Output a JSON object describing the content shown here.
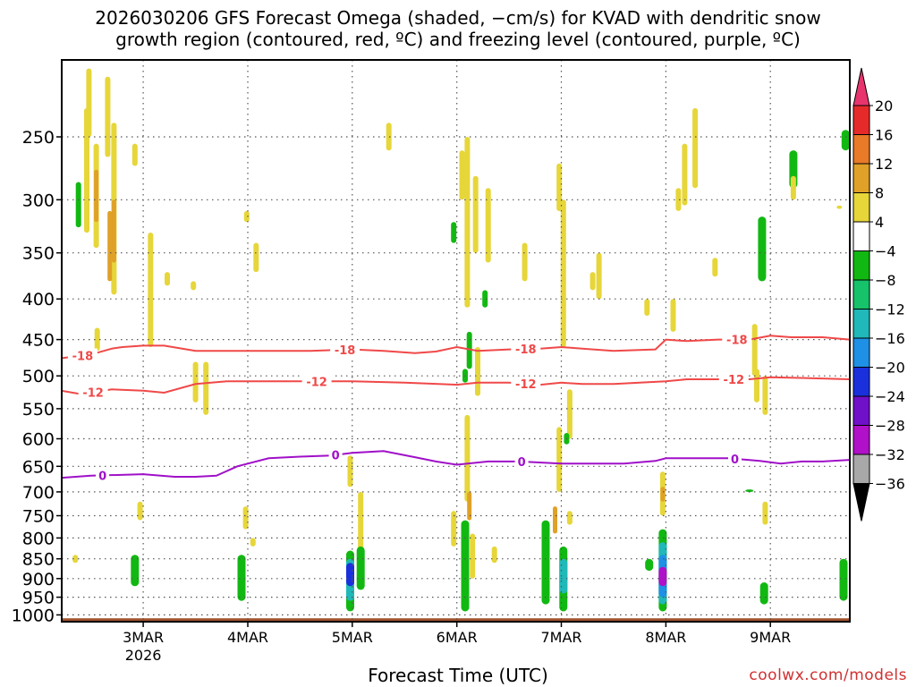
{
  "title_line1": "2026030206 GFS Forecast Omega (shaded, −cm/s) for KVAD with dendritic snow",
  "title_line2": "growth region (contoured, red, ºC) and freezing level (contoured, purple, ºC)",
  "x_axis_label": "Forecast Time (UTC)",
  "credit": "coolwx.com/models",
  "chart_data": {
    "type": "heatmap",
    "title": "2026030206 GFS Forecast Omega (shaded, −cm/s) for KVAD with dendritic snow growth region (contoured, red, ºC) and freezing level (contoured, purple, ºC)",
    "xlabel": "Forecast Time (UTC)",
    "ylabel": "",
    "x_range_days": [
      2.22,
      9.76
    ],
    "y_range_hpa": [
      1020,
      200
    ],
    "y_scale": "log-pressure",
    "grid": true,
    "x_ticks": [
      {
        "value": 3,
        "label": "3MAR",
        "sublabel": "2026"
      },
      {
        "value": 4,
        "label": "4MAR",
        "sublabel": ""
      },
      {
        "value": 5,
        "label": "5MAR",
        "sublabel": ""
      },
      {
        "value": 6,
        "label": "6MAR",
        "sublabel": ""
      },
      {
        "value": 7,
        "label": "7MAR",
        "sublabel": ""
      },
      {
        "value": 8,
        "label": "8MAR",
        "sublabel": ""
      },
      {
        "value": 9,
        "label": "9MAR",
        "sublabel": ""
      }
    ],
    "y_ticks": [
      250,
      300,
      350,
      400,
      450,
      500,
      550,
      600,
      650,
      700,
      750,
      800,
      850,
      900,
      950,
      1000
    ],
    "colorbar": {
      "labels": [
        "20",
        "16",
        "12",
        "8",
        "4",
        "−4",
        "−8",
        "−12",
        "−16",
        "−20",
        "−24",
        "−28",
        "−32",
        "−36"
      ],
      "colors": [
        "#e8356e",
        "#e62a2a",
        "#e87a28",
        "#e0a128",
        "#e6d63a",
        "#ffffff",
        "#12b812",
        "#16c26a",
        "#20b8b8",
        "#1e90e6",
        "#1a30dc",
        "#7010c8",
        "#b010c8",
        "#a8a8a8",
        "#000000"
      ]
    },
    "series": [
      {
        "name": "-18",
        "color": "#f04848",
        "x": [
          2.22,
          2.5,
          2.7,
          2.8,
          3.0,
          3.2,
          3.5,
          3.8,
          4.2,
          4.6,
          5.0,
          5.3,
          5.6,
          5.8,
          6.0,
          6.2,
          6.5,
          6.8,
          7.0,
          7.2,
          7.5,
          7.9,
          8.0,
          8.2,
          8.5,
          8.8,
          9.0,
          9.2,
          9.5,
          9.76
        ],
        "y": [
          475,
          470,
          462,
          460,
          458,
          458,
          465,
          465,
          465,
          465,
          463,
          465,
          468,
          466,
          460,
          465,
          463,
          462,
          460,
          462,
          465,
          463,
          450,
          452,
          450,
          450,
          445,
          447,
          447,
          450
        ]
      },
      {
        "name": "-12",
        "color": "#f04848",
        "x": [
          2.22,
          2.4,
          2.7,
          3.0,
          3.2,
          3.5,
          3.8,
          4.2,
          4.6,
          5.0,
          5.5,
          6.0,
          6.2,
          6.5,
          6.8,
          7.0,
          7.2,
          7.5,
          8.0,
          8.2,
          8.5,
          8.8,
          9.0,
          9.3,
          9.76
        ],
        "y": [
          522,
          527,
          520,
          522,
          525,
          512,
          508,
          508,
          508,
          508,
          510,
          513,
          510,
          510,
          513,
          510,
          512,
          512,
          508,
          505,
          505,
          505,
          502,
          503,
          505
        ]
      },
      {
        "name": "0",
        "color": "#a010c8",
        "x": [
          2.22,
          2.5,
          3.0,
          3.3,
          3.5,
          3.7,
          3.9,
          4.2,
          4.5,
          4.8,
          5.0,
          5.3,
          5.6,
          5.8,
          6.0,
          6.3,
          6.6,
          7.0,
          7.3,
          7.6,
          7.9,
          8.0,
          8.3,
          8.6,
          8.9,
          9.1,
          9.3,
          9.5,
          9.76
        ],
        "y": [
          672,
          668,
          665,
          670,
          670,
          668,
          650,
          635,
          632,
          630,
          625,
          622,
          633,
          641,
          647,
          641,
          641,
          645,
          645,
          645,
          640,
          635,
          635,
          635,
          640,
          645,
          641,
          641,
          638
        ]
      }
    ],
    "contour_labels": [
      {
        "text": "-18",
        "series": "-18",
        "x": 2.42
      },
      {
        "text": "-18",
        "series": "-18",
        "x": 4.93
      },
      {
        "text": "-18",
        "series": "-18",
        "x": 6.66
      },
      {
        "text": "-18",
        "series": "-18",
        "x": 8.68
      },
      {
        "text": "-12",
        "series": "-12",
        "x": 2.52
      },
      {
        "text": "-12",
        "series": "-12",
        "x": 4.66
      },
      {
        "text": "-12",
        "series": "-12",
        "x": 6.66
      },
      {
        "text": "-12",
        "series": "-12",
        "x": 8.65
      },
      {
        "text": "0",
        "series": "0",
        "x": 2.61
      },
      {
        "text": "0",
        "series": "0",
        "x": 4.84
      },
      {
        "text": "0",
        "series": "0",
        "x": 6.62
      },
      {
        "text": "0",
        "series": "0",
        "x": 8.66
      }
    ],
    "omega_regions": [
      {
        "x": 2.48,
        "p_top": 205,
        "p_bot": 250,
        "value": 5
      },
      {
        "x": 2.66,
        "p_top": 210,
        "p_bot": 265,
        "value": 5
      },
      {
        "x": 2.46,
        "p_top": 230,
        "p_bot": 330,
        "value": 5
      },
      {
        "x": 2.38,
        "p_top": 285,
        "p_bot": 325,
        "value": -6
      },
      {
        "x": 2.55,
        "p_top": 255,
        "p_bot": 345,
        "value": 6
      },
      {
        "x": 2.55,
        "p_top": 275,
        "p_bot": 320,
        "value": 10
      },
      {
        "x": 2.72,
        "p_top": 240,
        "p_bot": 395,
        "value": 5
      },
      {
        "x": 2.72,
        "p_top": 300,
        "p_bot": 360,
        "value": 10
      },
      {
        "x": 2.92,
        "p_top": 255,
        "p_bot": 272,
        "value": 5
      },
      {
        "x": 3.07,
        "p_top": 330,
        "p_bot": 460,
        "value": 5
      },
      {
        "x": 3.23,
        "p_top": 370,
        "p_bot": 385,
        "value": 5
      },
      {
        "x": 3.48,
        "p_top": 380,
        "p_bot": 390,
        "value": 5
      },
      {
        "x": 2.56,
        "p_top": 435,
        "p_bot": 465,
        "value": 5
      },
      {
        "x": 3.5,
        "p_top": 480,
        "p_bot": 540,
        "value": 5
      },
      {
        "x": 3.6,
        "p_top": 480,
        "p_bot": 560,
        "value": 5
      },
      {
        "x": 3.99,
        "p_top": 310,
        "p_bot": 320,
        "value": 5
      },
      {
        "x": 4.08,
        "p_top": 340,
        "p_bot": 370,
        "value": 5
      },
      {
        "x": 3.98,
        "p_top": 730,
        "p_bot": 780,
        "value": 5
      },
      {
        "x": 4.05,
        "p_top": 800,
        "p_bot": 820,
        "value": 5
      },
      {
        "x": 2.97,
        "p_top": 720,
        "p_bot": 760,
        "value": 5
      },
      {
        "x": 2.92,
        "p_top": 840,
        "p_bot": 920,
        "value": -7
      },
      {
        "x": 3.94,
        "p_top": 840,
        "p_bot": 960,
        "value": -7
      },
      {
        "x": 4.98,
        "p_top": 630,
        "p_bot": 690,
        "value": 5
      },
      {
        "x": 4.98,
        "p_top": 830,
        "p_bot": 990,
        "value": -7
      },
      {
        "x": 4.98,
        "p_top": 850,
        "p_bot": 960,
        "value": -13
      },
      {
        "x": 4.98,
        "p_top": 860,
        "p_bot": 920,
        "value": -22
      },
      {
        "x": 5.08,
        "p_top": 700,
        "p_bot": 900,
        "value": 5
      },
      {
        "x": 5.08,
        "p_top": 820,
        "p_bot": 930,
        "value": -7
      },
      {
        "x": 6.05,
        "p_top": 260,
        "p_bot": 300,
        "value": 5
      },
      {
        "x": 6.1,
        "p_top": 250,
        "p_bot": 410,
        "value": 5
      },
      {
        "x": 6.18,
        "p_top": 280,
        "p_bot": 350,
        "value": 5
      },
      {
        "x": 6.3,
        "p_top": 290,
        "p_bot": 360,
        "value": 6
      },
      {
        "x": 6.12,
        "p_top": 440,
        "p_bot": 490,
        "value": -6
      },
      {
        "x": 6.2,
        "p_top": 460,
        "p_bot": 530,
        "value": 5
      },
      {
        "x": 6.1,
        "p_top": 560,
        "p_bot": 720,
        "value": 5
      },
      {
        "x": 6.12,
        "p_top": 700,
        "p_bot": 760,
        "value": 10
      },
      {
        "x": 5.97,
        "p_top": 740,
        "p_bot": 820,
        "value": 5
      },
      {
        "x": 6.08,
        "p_top": 760,
        "p_bot": 990,
        "value": -7
      },
      {
        "x": 6.15,
        "p_top": 790,
        "p_bot": 900,
        "value": 6
      },
      {
        "x": 6.36,
        "p_top": 820,
        "p_bot": 860,
        "value": 5
      },
      {
        "x": 6.98,
        "p_top": 270,
        "p_bot": 310,
        "value": 5
      },
      {
        "x": 7.02,
        "p_top": 300,
        "p_bot": 460,
        "value": 5
      },
      {
        "x": 7.08,
        "p_top": 520,
        "p_bot": 600,
        "value": 5
      },
      {
        "x": 6.98,
        "p_top": 580,
        "p_bot": 700,
        "value": 5
      },
      {
        "x": 6.94,
        "p_top": 730,
        "p_bot": 790,
        "value": 10
      },
      {
        "x": 7.08,
        "p_top": 740,
        "p_bot": 770,
        "value": 5
      },
      {
        "x": 6.85,
        "p_top": 760,
        "p_bot": 970,
        "value": -7
      },
      {
        "x": 7.02,
        "p_top": 820,
        "p_bot": 990,
        "value": -7
      },
      {
        "x": 7.02,
        "p_top": 850,
        "p_bot": 940,
        "value": -13
      },
      {
        "x": 7.3,
        "p_top": 370,
        "p_bot": 390,
        "value": 5
      },
      {
        "x": 7.36,
        "p_top": 350,
        "p_bot": 400,
        "value": 5
      },
      {
        "x": 7.82,
        "p_top": 400,
        "p_bot": 420,
        "value": 5
      },
      {
        "x": 8.07,
        "p_top": 400,
        "p_bot": 440,
        "value": 5
      },
      {
        "x": 7.97,
        "p_top": 660,
        "p_bot": 750,
        "value": 6
      },
      {
        "x": 7.97,
        "p_top": 690,
        "p_bot": 720,
        "value": 10
      },
      {
        "x": 7.97,
        "p_top": 780,
        "p_bot": 990,
        "value": -7
      },
      {
        "x": 7.97,
        "p_top": 810,
        "p_bot": 970,
        "value": -14
      },
      {
        "x": 7.97,
        "p_top": 840,
        "p_bot": 950,
        "value": -18
      },
      {
        "x": 7.97,
        "p_top": 870,
        "p_bot": 920,
        "value": -28
      },
      {
        "x": 7.84,
        "p_top": 850,
        "p_bot": 880,
        "value": -7
      },
      {
        "x": 8.28,
        "p_top": 230,
        "p_bot": 290,
        "value": 5
      },
      {
        "x": 8.18,
        "p_top": 255,
        "p_bot": 305,
        "value": 5
      },
      {
        "x": 8.12,
        "p_top": 290,
        "p_bot": 310,
        "value": 5
      },
      {
        "x": 8.47,
        "p_top": 355,
        "p_bot": 375,
        "value": 5
      },
      {
        "x": 8.92,
        "p_top": 315,
        "p_bot": 380,
        "value": -7
      },
      {
        "x": 8.85,
        "p_top": 430,
        "p_bot": 500,
        "value": 5
      },
      {
        "x": 8.87,
        "p_top": 490,
        "p_bot": 540,
        "value": 5
      },
      {
        "x": 8.95,
        "p_top": 500,
        "p_bot": 560,
        "value": 5
      },
      {
        "x": 8.95,
        "p_top": 720,
        "p_bot": 770,
        "value": 5
      },
      {
        "x": 8.8,
        "p_top": 695,
        "p_bot": 700,
        "value": -7
      },
      {
        "x": 8.94,
        "p_top": 910,
        "p_bot": 970,
        "value": -7
      },
      {
        "x": 9.22,
        "p_top": 260,
        "p_bot": 290,
        "value": -7
      },
      {
        "x": 9.22,
        "p_top": 280,
        "p_bot": 300,
        "value": 5
      },
      {
        "x": 9.66,
        "p_top": 305,
        "p_bot": 308,
        "value": 5
      },
      {
        "x": 9.72,
        "p_top": 245,
        "p_bot": 260,
        "value": -7
      },
      {
        "x": 9.7,
        "p_top": 850,
        "p_bot": 960,
        "value": -7
      },
      {
        "x": 2.35,
        "p_top": 840,
        "p_bot": 860,
        "value": 5
      },
      {
        "x": 2.68,
        "p_top": 310,
        "p_bot": 380,
        "value": 10
      },
      {
        "x": 5.35,
        "p_top": 240,
        "p_bot": 260,
        "value": 5
      },
      {
        "x": 5.97,
        "p_top": 320,
        "p_bot": 340,
        "value": -6
      },
      {
        "x": 6.27,
        "p_top": 390,
        "p_bot": 410,
        "value": -6
      },
      {
        "x": 6.08,
        "p_top": 490,
        "p_bot": 510,
        "value": -6
      },
      {
        "x": 7.05,
        "p_top": 590,
        "p_bot": 610,
        "value": -6
      },
      {
        "x": 6.65,
        "p_top": 340,
        "p_bot": 380,
        "value": 5
      }
    ],
    "terrain_band": {
      "p_top": 1010,
      "p_bot": 1020,
      "color": "#a0522d"
    }
  }
}
